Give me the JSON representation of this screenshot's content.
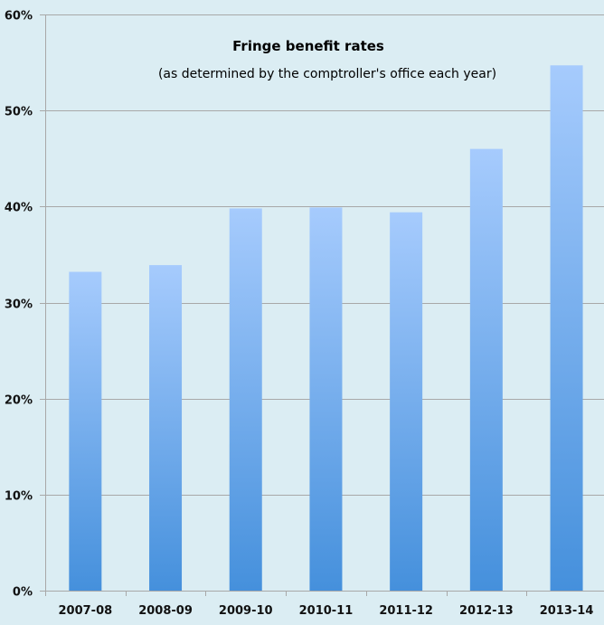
{
  "chart_data": {
    "type": "bar",
    "title": "Fringe benefit rates",
    "subtitle": "(as determined by the comptroller's office each year)",
    "xlabel": "",
    "ylabel": "",
    "categories": [
      "2007-08",
      "2008-09",
      "2009-10",
      "2010-11",
      "2011-12",
      "2012-13",
      "2013-14"
    ],
    "values": [
      33.2,
      33.9,
      39.8,
      39.9,
      39.4,
      46.0,
      54.7
    ],
    "ylim": [
      0,
      60
    ],
    "yticks": [
      0,
      10,
      20,
      30,
      40,
      50,
      60
    ],
    "ytick_labels": [
      "0%",
      "10%",
      "20%",
      "30%",
      "40%",
      "50%",
      "60%"
    ],
    "grid": true,
    "legend": "none",
    "colors": {
      "background": "#dbedf3",
      "bar_top": "#a6cbfd",
      "bar_bottom": "#4590dc",
      "grid": "#a8a8a8"
    }
  }
}
